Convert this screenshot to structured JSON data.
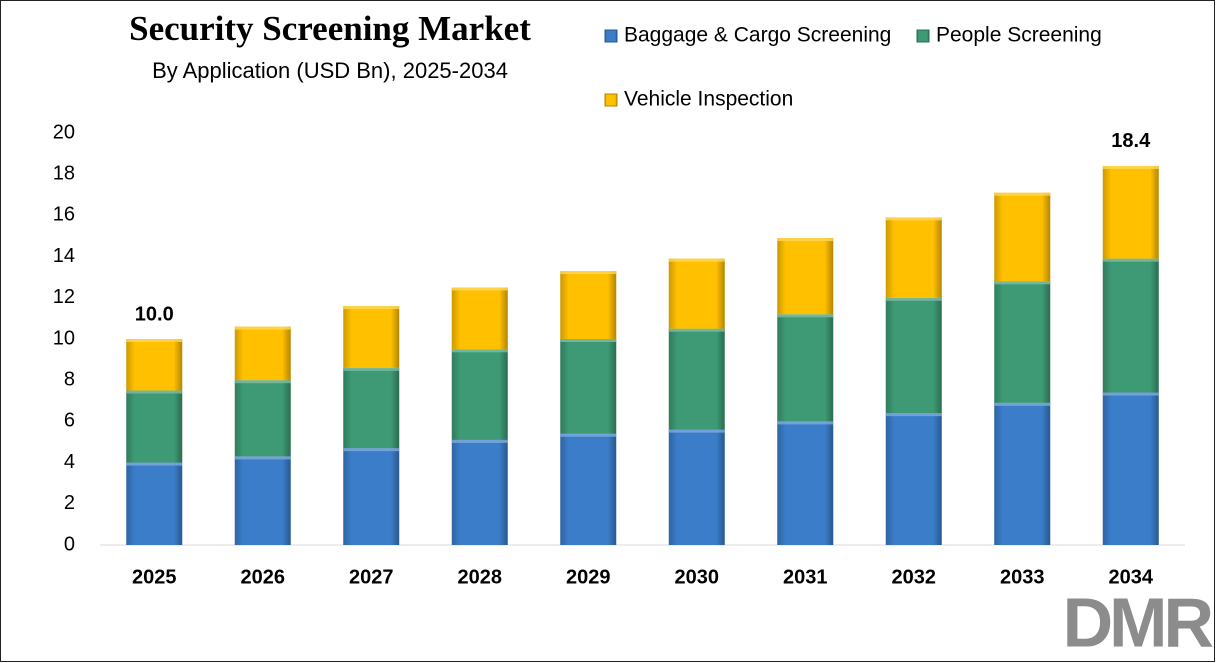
{
  "chart_data": {
    "type": "stacked-bar",
    "title": "Security Screening Market",
    "subtitle": "By Application (USD Bn), 2025-2034",
    "categories": [
      "2025",
      "2026",
      "2027",
      "2028",
      "2029",
      "2030",
      "2031",
      "2032",
      "2033",
      "2034"
    ],
    "series": [
      {
        "name": "Baggage & Cargo Screening",
        "color": "#3b7dc9",
        "values": [
          4.0,
          4.3,
          4.7,
          5.1,
          5.4,
          5.6,
          6.0,
          6.4,
          6.9,
          7.4
        ]
      },
      {
        "name": "People Screening",
        "color": "#3d9a74",
        "values": [
          3.5,
          3.7,
          3.9,
          4.4,
          4.6,
          4.9,
          5.2,
          5.6,
          5.9,
          6.5
        ]
      },
      {
        "name": "Vehicle Inspection",
        "color": "#ffc000",
        "values": [
          2.5,
          2.6,
          3.0,
          3.0,
          3.3,
          3.4,
          3.7,
          3.9,
          4.3,
          4.5
        ]
      }
    ],
    "annotations": [
      {
        "category": "2025",
        "value": 10.0,
        "label": "10.0"
      },
      {
        "category": "2034",
        "value": 18.4,
        "label": "18.4"
      }
    ],
    "ylim": [
      0,
      20
    ],
    "yticks": [
      0,
      2,
      4,
      6,
      8,
      10,
      12,
      14,
      16,
      18,
      20
    ],
    "logo": "DMR"
  }
}
